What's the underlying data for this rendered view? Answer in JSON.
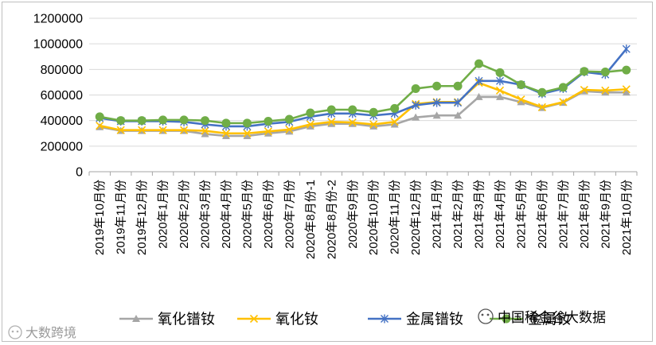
{
  "chart_data": {
    "type": "line",
    "title": "",
    "xlabel": "",
    "ylabel": "",
    "ylim": [
      0,
      1200000
    ],
    "yticks": [
      0,
      200000,
      400000,
      600000,
      800000,
      1000000,
      1200000
    ],
    "ytick_labels": [
      "0",
      "200000",
      "400000",
      "600000",
      "800000",
      "1000000",
      "1200000"
    ],
    "grid": "horizontal",
    "legend": "bottom",
    "categories": [
      "2019年10月份",
      "2019年11月份",
      "2019年12月份",
      "2020年1月份",
      "2020年2月份",
      "2020年3月份",
      "2020年4月份",
      "2020年5月份",
      "2020年6月份",
      "2020年7月份",
      "2020年8月份-1",
      "2020年8月份-2",
      "2020年9月份",
      "2020年10月份",
      "2020年11月份",
      "2020年12月份",
      "2021年1月份",
      "2021年2月份",
      "2021年3月份",
      "2021年4月份",
      "2021年5月份",
      "2021年6月份",
      "2021年7月份",
      "2021年8月份",
      "2021年9月份",
      "2021年10月份"
    ],
    "series": [
      {
        "name": "氧化镨钕",
        "color": "#a6a6a6",
        "marker": "triangle",
        "values": [
          350000,
          320000,
          320000,
          320000,
          320000,
          295000,
          280000,
          280000,
          300000,
          315000,
          355000,
          375000,
          375000,
          355000,
          370000,
          425000,
          440000,
          440000,
          585000,
          585000,
          545000,
          500000,
          540000,
          630000,
          620000,
          620000
        ]
      },
      {
        "name": "氧化钕",
        "color": "#ffc000",
        "marker": "x",
        "values": [
          360000,
          325000,
          325000,
          325000,
          325000,
          320000,
          300000,
          300000,
          315000,
          330000,
          370000,
          390000,
          385000,
          370000,
          390000,
          530000,
          545000,
          545000,
          695000,
          635000,
          565000,
          505000,
          545000,
          640000,
          635000,
          645000
        ]
      },
      {
        "name": "金属镨钕",
        "color": "#4472c4",
        "marker": "star",
        "values": [
          420000,
          395000,
          395000,
          395000,
          390000,
          370000,
          355000,
          355000,
          375000,
          390000,
          430000,
          455000,
          455000,
          440000,
          455000,
          520000,
          540000,
          540000,
          710000,
          710000,
          680000,
          610000,
          650000,
          780000,
          760000,
          960000
        ]
      },
      {
        "name": "金属钕",
        "color": "#70ad47",
        "marker": "circle",
        "values": [
          430000,
          400000,
          400000,
          405000,
          405000,
          400000,
          380000,
          380000,
          395000,
          410000,
          460000,
          485000,
          485000,
          465000,
          495000,
          650000,
          670000,
          670000,
          845000,
          775000,
          680000,
          620000,
          660000,
          785000,
          780000,
          795000
        ]
      }
    ]
  },
  "watermark_right": "中国稀金谷大数据",
  "watermark_left": "大数跨境"
}
